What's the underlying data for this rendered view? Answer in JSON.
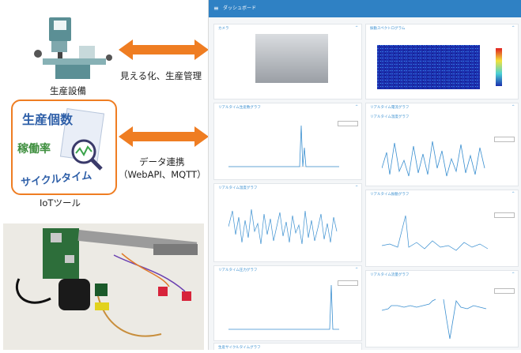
{
  "labels": {
    "equipment": "生産設備",
    "visualize": "見える化、生産管理",
    "data_link_1": "データ連携",
    "data_link_2": "（WebAPI、MQTT）",
    "iot_tool": "IoTツール"
  },
  "tool_card": {
    "title": "生産個数",
    "word2": "稼働率",
    "word3": "サイクルタイム"
  },
  "dashboard": {
    "header_title": "ダッシュボード",
    "panels": [
      {
        "title": "カメラ"
      },
      {
        "title": "振動スペクトログラム"
      },
      {
        "title": "リアルタイム生産数グラフ"
      },
      {
        "title": "リアルタイム電流グラフ"
      },
      {
        "title": "リアルタイム温度グラフ"
      },
      {
        "title": "リアルタイム振動グラフ"
      },
      {
        "title": "リアルタイム温度グラフ"
      },
      {
        "title": "リアルタイム振動グラフ"
      },
      {
        "title": "リアルタイム圧力グラフ"
      },
      {
        "title": "リアルタイム流量グラフ"
      },
      {
        "title": "生産サイクルタイムグラフ"
      }
    ]
  },
  "colors": {
    "header": "#2f81c4",
    "arrow": "#ef7d22",
    "card_border": "#ef7d22",
    "line": "#3a8fd0"
  }
}
